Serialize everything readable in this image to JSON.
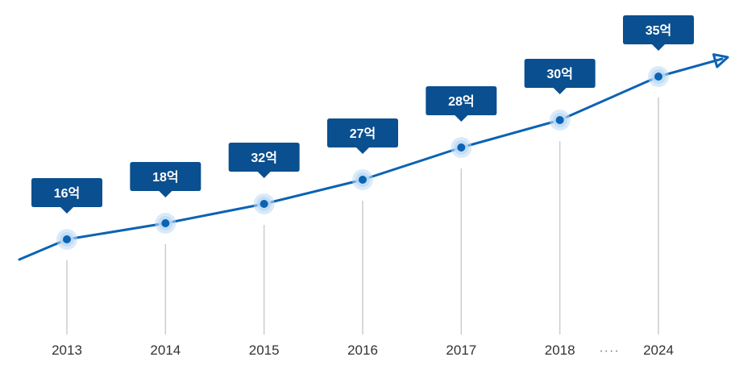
{
  "chart_data": {
    "type": "line",
    "title": "",
    "xlabel": "",
    "ylabel": "",
    "categories": [
      "2013",
      "2014",
      "2015",
      "2016",
      "2017",
      "2018",
      "2024"
    ],
    "series": [
      {
        "values": [
          16,
          18,
          32,
          27,
          28,
          30,
          35
        ],
        "data_labels": [
          "16억",
          "18억",
          "32억",
          "27억",
          "28억",
          "30억",
          "35억"
        ]
      }
    ],
    "axis_break_text": "····",
    "grid": false,
    "legend": "none",
    "trend_arrow": true,
    "colors": {
      "line": "#0b63b3",
      "label_bg": "#0a4f8f",
      "label_text": "#ffffff",
      "point_halo": "#bcd9f5",
      "drop_line": "#cccccc",
      "tick_text": "#333333"
    }
  }
}
